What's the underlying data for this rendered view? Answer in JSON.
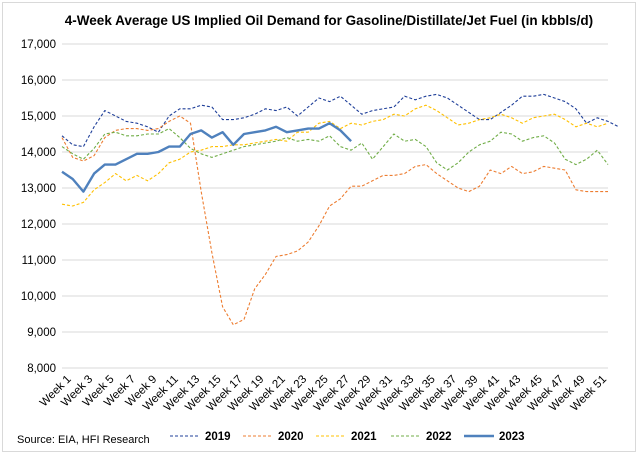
{
  "chart_data": {
    "type": "line",
    "title": "4-Week Average US Implied Oil Demand for Gasoline/Distillate/Jet Fuel (in kbbls/d)",
    "source": "Source: EIA, HFI Research",
    "ylim": [
      8000,
      17000
    ],
    "yticks": [
      "8,000",
      "9,000",
      "10,000",
      "11,000",
      "12,000",
      "13,000",
      "14,000",
      "15,000",
      "16,000",
      "17,000"
    ],
    "ytick_values": [
      8000,
      9000,
      10000,
      11000,
      12000,
      13000,
      14000,
      15000,
      16000,
      17000
    ],
    "xtick_labels": [
      "Week 1",
      "Week 3",
      "Week 5",
      "Week 7",
      "Week 9",
      "Week 11",
      "Week 13",
      "Week 15",
      "Week 17",
      "Week 19",
      "Week 21",
      "Week 23",
      "Week 25",
      "Week 27",
      "Week 29",
      "Week 31",
      "Week 33",
      "Week 35",
      "Week 37",
      "Week 39",
      "Week 41",
      "Week 43",
      "Week 45",
      "Week 47",
      "Week 49",
      "Week 51"
    ],
    "xtick_weeks": [
      1,
      3,
      5,
      7,
      9,
      11,
      13,
      15,
      17,
      19,
      21,
      23,
      25,
      27,
      29,
      31,
      33,
      35,
      37,
      39,
      41,
      43,
      45,
      47,
      49,
      51
    ],
    "grid": true,
    "legend_position": "bottom",
    "series": [
      {
        "name": "2019",
        "color": "#1f3f99",
        "dash": "3,2",
        "width": 1.1,
        "start_week": 1,
        "values": [
          14450,
          14200,
          14150,
          14700,
          15150,
          15000,
          14850,
          14800,
          14700,
          14550,
          15000,
          15200,
          15200,
          15300,
          15250,
          14900,
          14900,
          14950,
          15050,
          15200,
          15150,
          15250,
          15000,
          15250,
          15500,
          15400,
          15550,
          15300,
          15050,
          15150,
          15200,
          15250,
          15550,
          15450,
          15550,
          15600,
          15500,
          15300,
          15100,
          14900,
          14900,
          15100,
          15300,
          15550,
          15550,
          15600,
          15500,
          15400,
          15200,
          14800,
          14950,
          14850,
          14700
        ]
      },
      {
        "name": "2020",
        "color": "#ed7d31",
        "dash": "3,2",
        "width": 1.1,
        "start_week": 1,
        "values": [
          14400,
          13850,
          13750,
          13900,
          14400,
          14600,
          14650,
          14650,
          14600,
          14650,
          14850,
          15000,
          14800,
          12900,
          11200,
          9700,
          9200,
          9350,
          10200,
          10600,
          11100,
          11150,
          11250,
          11500,
          11950,
          12500,
          12700,
          13050,
          13050,
          13200,
          13350,
          13350,
          13400,
          13600,
          13650,
          13400,
          13200,
          13000,
          12900,
          13050,
          13500,
          13400,
          13600,
          13400,
          13450,
          13600,
          13550,
          13500,
          12950,
          12900,
          12900,
          12900
        ]
      },
      {
        "name": "2021",
        "color": "#ffc000",
        "dash": "3,2",
        "width": 1.1,
        "start_week": 1,
        "values": [
          12550,
          12500,
          12600,
          12950,
          13150,
          13400,
          13200,
          13350,
          13200,
          13400,
          13700,
          13800,
          14000,
          14050,
          14150,
          14150,
          14200,
          14200,
          14250,
          14300,
          14350,
          14300,
          14550,
          14550,
          14800,
          14850,
          14650,
          14800,
          14750,
          14850,
          14900,
          15050,
          15000,
          15200,
          15300,
          15150,
          14950,
          14750,
          14800,
          14900,
          14950,
          15050,
          14950,
          14800,
          14950,
          15000,
          15050,
          14900,
          14700,
          14800,
          14700,
          14800
        ]
      },
      {
        "name": "2022",
        "color": "#70ad47",
        "dash": "3,2",
        "width": 1.1,
        "start_week": 1,
        "values": [
          14150,
          13950,
          13800,
          14100,
          14500,
          14550,
          14450,
          14450,
          14500,
          14500,
          14650,
          14400,
          14100,
          13950,
          13850,
          13950,
          14050,
          14150,
          14200,
          14250,
          14300,
          14400,
          14300,
          14350,
          14300,
          14450,
          14150,
          14050,
          14250,
          13800,
          14150,
          14500,
          14300,
          14350,
          14150,
          13700,
          13500,
          13700,
          14000,
          14200,
          14300,
          14550,
          14500,
          14300,
          14400,
          14450,
          14250,
          13800,
          13650,
          13800,
          14050,
          13650
        ]
      },
      {
        "name": "2023",
        "color": "#4f81bd",
        "dash": "",
        "width": 2.4,
        "start_week": 1,
        "values": [
          13450,
          13250,
          12900,
          13400,
          13650,
          13650,
          13800,
          13950,
          13950,
          14000,
          14150,
          14150,
          14500,
          14600,
          14400,
          14550,
          14200,
          14500,
          14550,
          14600,
          14700,
          14550,
          14600,
          14650,
          14650,
          14800,
          14600,
          14300
        ]
      }
    ]
  }
}
